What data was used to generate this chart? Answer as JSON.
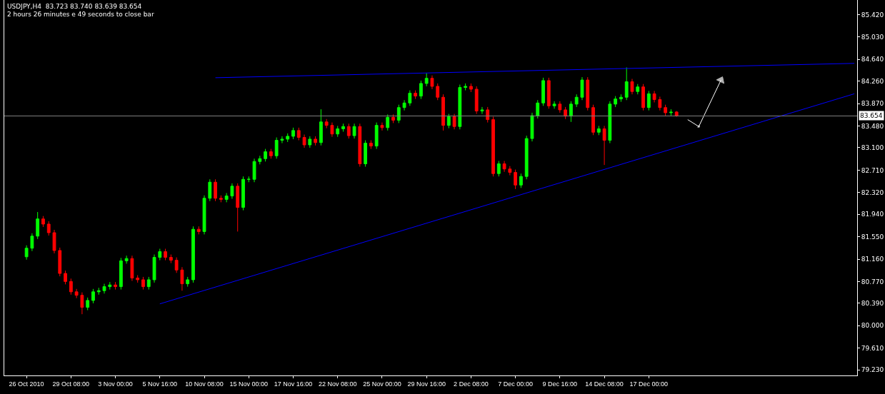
{
  "chart_data": {
    "type": "candlestick",
    "annotations": [
      "USDJPY,H4  83.723 83.740 83.639 83.654",
      "2 hours 26 minutes e 49 seconds to close bar"
    ],
    "categories": [
      "26 Oct 2010",
      null,
      null,
      null,
      null,
      null,
      null,
      null,
      "29 Oct 08:00",
      null,
      null,
      null,
      null,
      null,
      null,
      null,
      "3 Nov 00:00",
      null,
      null,
      null,
      null,
      null,
      null,
      null,
      "5 Nov 16:00",
      null,
      null,
      null,
      null,
      null,
      null,
      null,
      "10 Nov 08:00",
      null,
      null,
      null,
      null,
      null,
      null,
      null,
      "15 Nov 00:00",
      null,
      null,
      null,
      null,
      null,
      null,
      null,
      "17 Nov 16:00",
      null,
      null,
      null,
      null,
      null,
      null,
      null,
      "22 Nov 08:00",
      null,
      null,
      null,
      null,
      null,
      null,
      null,
      "25 Nov 00:00",
      null,
      null,
      null,
      null,
      null,
      null,
      null,
      "29 Nov 16:00",
      null,
      null,
      null,
      null,
      null,
      null,
      null,
      "2 Dec 08:00",
      null,
      null,
      null,
      null,
      null,
      null,
      null,
      "7 Dec 00:00",
      null,
      null,
      null,
      null,
      null,
      null,
      null,
      "9 Dec 16:00",
      null,
      null,
      null,
      null,
      null,
      null,
      null,
      "14 Dec 08:00",
      null,
      null,
      null,
      null,
      null,
      null,
      null,
      "17 Dec 00:00",
      null,
      null,
      null,
      null,
      null,
      null,
      null,
      null,
      null,
      null,
      null,
      null,
      null,
      null,
      null,
      null,
      null,
      null,
      null,
      null,
      null,
      null,
      null,
      null,
      null,
      null,
      null,
      null,
      null,
      null,
      null,
      null,
      null,
      null,
      null,
      null,
      null
    ],
    "ohlc": [
      [
        81.2,
        81.4,
        81.15,
        81.35
      ],
      [
        81.35,
        81.61,
        81.3,
        81.56
      ],
      [
        81.56,
        81.98,
        81.51,
        81.86
      ],
      [
        81.86,
        81.91,
        81.72,
        81.77
      ],
      [
        81.77,
        81.82,
        81.57,
        81.62
      ],
      [
        81.62,
        81.67,
        81.26,
        81.31
      ],
      [
        81.31,
        81.36,
        80.86,
        80.91
      ],
      [
        80.91,
        80.96,
        80.72,
        80.77
      ],
      [
        80.77,
        80.82,
        80.54,
        80.59
      ],
      [
        80.59,
        80.64,
        80.48,
        80.53
      ],
      [
        80.53,
        80.58,
        80.2,
        80.32
      ],
      [
        80.32,
        80.49,
        80.27,
        80.44
      ],
      [
        80.44,
        80.64,
        80.39,
        80.59
      ],
      [
        80.59,
        80.66,
        80.54,
        80.61
      ],
      [
        80.61,
        80.73,
        80.56,
        80.68
      ],
      [
        80.68,
        80.76,
        80.63,
        80.71
      ],
      [
        80.71,
        80.76,
        80.63,
        80.68
      ],
      [
        80.68,
        81.18,
        80.63,
        81.13
      ],
      [
        81.13,
        81.22,
        81.08,
        81.17
      ],
      [
        81.17,
        81.22,
        80.78,
        80.83
      ],
      [
        80.83,
        80.88,
        80.75,
        80.8
      ],
      [
        80.8,
        80.85,
        80.63,
        80.68
      ],
      [
        80.68,
        80.85,
        80.63,
        80.8
      ],
      [
        80.8,
        81.24,
        80.75,
        81.19
      ],
      [
        81.19,
        81.34,
        81.14,
        81.29
      ],
      [
        81.29,
        81.34,
        81.14,
        81.19
      ],
      [
        81.19,
        81.24,
        81.09,
        81.14
      ],
      [
        81.14,
        81.19,
        80.92,
        80.97
      ],
      [
        80.97,
        81.02,
        80.61,
        80.73
      ],
      [
        80.73,
        80.85,
        80.68,
        80.8
      ],
      [
        80.8,
        81.73,
        80.75,
        81.68
      ],
      [
        81.68,
        81.73,
        81.59,
        81.64
      ],
      [
        81.64,
        82.27,
        81.59,
        82.22
      ],
      [
        82.22,
        82.55,
        82.17,
        82.5
      ],
      [
        82.5,
        82.55,
        82.17,
        82.22
      ],
      [
        82.22,
        82.27,
        82.15,
        82.2
      ],
      [
        82.2,
        82.31,
        82.15,
        82.26
      ],
      [
        82.26,
        82.48,
        82.21,
        82.43
      ],
      [
        82.43,
        82.48,
        81.64,
        82.06
      ],
      [
        82.06,
        82.6,
        82.01,
        82.55
      ],
      [
        82.55,
        82.6,
        82.5,
        82.55
      ],
      [
        82.55,
        82.91,
        82.5,
        82.86
      ],
      [
        82.86,
        82.96,
        82.81,
        82.91
      ],
      [
        82.91,
        83.08,
        82.86,
        83.03
      ],
      [
        83.03,
        83.08,
        82.91,
        82.96
      ],
      [
        82.96,
        83.28,
        82.91,
        83.23
      ],
      [
        83.23,
        83.3,
        83.18,
        83.25
      ],
      [
        83.25,
        83.35,
        83.2,
        83.3
      ],
      [
        83.3,
        83.45,
        83.25,
        83.4
      ],
      [
        83.4,
        83.45,
        83.23,
        83.28
      ],
      [
        83.28,
        83.33,
        83.1,
        83.15
      ],
      [
        83.15,
        83.3,
        83.1,
        83.25
      ],
      [
        83.25,
        83.3,
        83.14,
        83.19
      ],
      [
        83.19,
        83.77,
        83.14,
        83.55
      ],
      [
        83.55,
        83.6,
        83.44,
        83.49
      ],
      [
        83.49,
        83.54,
        83.29,
        83.34
      ],
      [
        83.34,
        83.48,
        83.29,
        83.43
      ],
      [
        83.43,
        83.52,
        83.38,
        83.47
      ],
      [
        83.47,
        83.52,
        83.26,
        83.31
      ],
      [
        83.31,
        83.52,
        83.26,
        83.47
      ],
      [
        83.47,
        83.52,
        82.77,
        82.82
      ],
      [
        82.82,
        83.23,
        82.77,
        83.18
      ],
      [
        83.18,
        83.23,
        83.08,
        83.13
      ],
      [
        83.13,
        83.54,
        83.08,
        83.49
      ],
      [
        83.49,
        83.54,
        83.4,
        83.45
      ],
      [
        83.45,
        83.68,
        83.4,
        83.63
      ],
      [
        83.63,
        83.68,
        83.53,
        83.58
      ],
      [
        83.58,
        83.85,
        83.53,
        83.8
      ],
      [
        83.8,
        83.93,
        83.75,
        83.88
      ],
      [
        83.88,
        84.1,
        83.83,
        84.05
      ],
      [
        84.05,
        84.1,
        83.95,
        84.0
      ],
      [
        84.0,
        84.27,
        83.95,
        84.22
      ],
      [
        84.22,
        84.4,
        84.17,
        84.31
      ],
      [
        84.31,
        84.36,
        84.12,
        84.17
      ],
      [
        84.17,
        84.22,
        83.93,
        83.98
      ],
      [
        83.98,
        84.03,
        83.4,
        83.49
      ],
      [
        83.49,
        83.69,
        83.44,
        83.64
      ],
      [
        83.64,
        83.69,
        83.42,
        83.47
      ],
      [
        83.47,
        84.2,
        83.42,
        84.15
      ],
      [
        84.15,
        84.22,
        84.1,
        84.17
      ],
      [
        84.17,
        84.22,
        84.07,
        84.12
      ],
      [
        84.12,
        84.17,
        83.69,
        83.74
      ],
      [
        83.74,
        83.81,
        83.69,
        83.76
      ],
      [
        83.76,
        83.81,
        83.54,
        83.59
      ],
      [
        83.59,
        83.64,
        82.6,
        82.65
      ],
      [
        82.65,
        82.87,
        82.6,
        82.82
      ],
      [
        82.82,
        82.87,
        82.68,
        82.73
      ],
      [
        82.73,
        82.78,
        82.62,
        82.67
      ],
      [
        82.67,
        82.72,
        82.38,
        82.45
      ],
      [
        82.45,
        82.65,
        82.4,
        82.6
      ],
      [
        82.6,
        83.31,
        82.55,
        83.26
      ],
      [
        83.26,
        83.71,
        83.21,
        83.66
      ],
      [
        83.66,
        83.93,
        83.61,
        83.88
      ],
      [
        83.88,
        84.32,
        83.83,
        84.27
      ],
      [
        84.27,
        84.32,
        83.78,
        83.83
      ],
      [
        83.83,
        83.91,
        83.78,
        83.86
      ],
      [
        83.86,
        83.91,
        83.71,
        83.76
      ],
      [
        83.76,
        83.81,
        83.6,
        83.65
      ],
      [
        83.65,
        83.91,
        83.55,
        83.86
      ],
      [
        83.86,
        84.03,
        83.81,
        83.98
      ],
      [
        83.98,
        84.33,
        83.93,
        84.28
      ],
      [
        84.28,
        84.33,
        83.75,
        83.8
      ],
      [
        83.8,
        83.85,
        83.32,
        83.37
      ],
      [
        83.37,
        83.48,
        83.32,
        83.43
      ],
      [
        83.43,
        83.48,
        82.8,
        83.23
      ],
      [
        83.23,
        83.91,
        83.18,
        83.86
      ],
      [
        83.86,
        84.0,
        83.81,
        83.95
      ],
      [
        83.95,
        84.03,
        83.9,
        83.98
      ],
      [
        83.98,
        84.5,
        83.93,
        84.25
      ],
      [
        84.25,
        84.3,
        84.03,
        84.08
      ],
      [
        84.08,
        84.21,
        84.03,
        84.16
      ],
      [
        84.16,
        84.21,
        83.75,
        83.8
      ],
      [
        83.8,
        84.09,
        83.75,
        84.04
      ],
      [
        84.04,
        84.09,
        83.89,
        83.94
      ],
      [
        83.94,
        83.99,
        83.75,
        83.8
      ],
      [
        83.8,
        83.85,
        83.66,
        83.71
      ],
      [
        83.71,
        83.77,
        83.66,
        83.72
      ],
      [
        83.723,
        83.74,
        83.639,
        83.654
      ],
      null,
      null,
      null,
      null,
      null,
      null,
      null,
      null,
      null,
      null,
      null,
      null,
      null,
      null,
      null,
      null,
      null,
      null,
      null,
      null,
      null,
      null,
      null,
      null,
      null,
      null,
      null,
      null,
      null,
      null,
      null,
      null
    ],
    "series": [
      {
        "type": "line",
        "color": "#0000ff",
        "values": [
          null,
          null,
          null,
          null,
          null,
          null,
          null,
          null,
          null,
          null,
          null,
          null,
          null,
          null,
          null,
          null,
          null,
          null,
          null,
          null,
          null,
          null,
          null,
          null,
          null,
          null,
          null,
          null,
          null,
          null,
          null,
          null,
          null,
          null,
          84.32,
          null,
          null,
          null,
          null,
          null,
          null,
          null,
          null,
          null,
          null,
          null,
          null,
          null,
          null,
          null,
          null,
          null,
          null,
          null,
          null,
          null,
          null,
          null,
          null,
          null,
          null,
          null,
          null,
          null,
          null,
          null,
          null,
          null,
          null,
          null,
          null,
          null,
          null,
          null,
          null,
          null,
          null,
          null,
          null,
          null,
          null,
          null,
          null,
          null,
          null,
          null,
          null,
          null,
          null,
          null,
          null,
          null,
          null,
          null,
          null,
          null,
          null,
          null,
          null,
          null,
          null,
          null,
          null,
          null,
          null,
          null,
          null,
          null,
          null,
          null,
          null,
          null,
          null,
          null,
          null,
          null,
          null,
          null,
          null,
          null,
          null,
          null,
          null,
          null,
          null,
          null,
          null,
          null,
          null,
          null,
          null,
          null,
          null,
          null,
          null,
          null,
          null,
          null,
          null,
          null,
          null,
          null,
          null,
          null,
          null,
          null,
          null,
          null,
          null,
          84.57
        ]
      },
      {
        "type": "line",
        "color": "#0000ff",
        "values": [
          null,
          null,
          null,
          null,
          null,
          null,
          null,
          null,
          null,
          null,
          null,
          null,
          null,
          null,
          null,
          null,
          null,
          null,
          null,
          null,
          null,
          null,
          null,
          null,
          80.38,
          null,
          null,
          null,
          null,
          null,
          null,
          null,
          null,
          null,
          null,
          null,
          null,
          null,
          null,
          null,
          null,
          null,
          null,
          null,
          null,
          null,
          null,
          null,
          null,
          null,
          null,
          null,
          null,
          null,
          null,
          null,
          null,
          null,
          null,
          null,
          null,
          null,
          null,
          null,
          null,
          null,
          null,
          null,
          null,
          null,
          null,
          null,
          null,
          null,
          null,
          null,
          null,
          null,
          null,
          null,
          null,
          null,
          null,
          null,
          null,
          null,
          null,
          null,
          null,
          null,
          null,
          null,
          null,
          null,
          null,
          null,
          null,
          null,
          null,
          null,
          null,
          null,
          null,
          null,
          null,
          null,
          null,
          null,
          null,
          null,
          null,
          null,
          null,
          null,
          null,
          null,
          null,
          null,
          null,
          null,
          null,
          null,
          null,
          null,
          null,
          null,
          null,
          null,
          null,
          null,
          null,
          null,
          null,
          null,
          null,
          null,
          null,
          null,
          null,
          null,
          null,
          null,
          null,
          null,
          null,
          null,
          null,
          null,
          null,
          84.04
        ]
      },
      {
        "type": "line",
        "color": "#ffffff",
        "marker": "triangle",
        "values": [
          null,
          null,
          null,
          null,
          null,
          null,
          null,
          null,
          null,
          null,
          null,
          null,
          null,
          null,
          null,
          null,
          null,
          null,
          null,
          null,
          null,
          null,
          null,
          null,
          null,
          null,
          null,
          null,
          null,
          null,
          null,
          null,
          null,
          null,
          null,
          null,
          null,
          null,
          null,
          null,
          null,
          null,
          null,
          null,
          null,
          null,
          null,
          null,
          null,
          null,
          null,
          null,
          null,
          null,
          null,
          null,
          null,
          null,
          null,
          null,
          null,
          null,
          null,
          null,
          null,
          null,
          null,
          null,
          null,
          null,
          null,
          null,
          null,
          null,
          null,
          null,
          null,
          null,
          null,
          null,
          null,
          null,
          null,
          null,
          null,
          null,
          null,
          null,
          null,
          null,
          null,
          null,
          null,
          null,
          null,
          null,
          null,
          null,
          null,
          null,
          null,
          null,
          null,
          null,
          null,
          null,
          null,
          null,
          null,
          null,
          null,
          null,
          null,
          null,
          null,
          null,
          null,
          null,
          null,
          83.59,
          null,
          83.47,
          null,
          null,
          null,
          84.28,
          null,
          null,
          null,
          null,
          null,
          null,
          null,
          null,
          null,
          null,
          null,
          null,
          null,
          null,
          null,
          null,
          null,
          null,
          null,
          null,
          null,
          null,
          null,
          null
        ]
      }
    ],
    "ref_lines": [
      {
        "axis": "y",
        "value": 83.654,
        "label": "83.654",
        "color": "#808080"
      }
    ],
    "ylim": [
      79.133,
      85.674
    ],
    "yticks": [
      {
        "value": 79.23,
        "label": "79.230"
      },
      {
        "value": 79.61,
        "label": "79.610"
      },
      {
        "value": 80.0,
        "label": "80.000"
      },
      {
        "value": 80.39,
        "label": "80.390"
      },
      {
        "value": 80.77,
        "label": "80.770"
      },
      {
        "value": 81.16,
        "label": "81.160"
      },
      {
        "value": 81.55,
        "label": "81.550"
      },
      {
        "value": 81.94,
        "label": "81.940"
      },
      {
        "value": 82.32,
        "label": "82.320"
      },
      {
        "value": 82.71,
        "label": "82.710"
      },
      {
        "value": 83.1,
        "label": "83.100"
      },
      {
        "value": 83.48,
        "label": "83.480"
      },
      {
        "value": 83.87,
        "label": "83.870"
      },
      {
        "value": 84.26,
        "label": "84.260"
      },
      {
        "value": 84.64,
        "label": "84.640"
      },
      {
        "value": 85.03,
        "label": "85.030"
      },
      {
        "value": 85.42,
        "label": "85.420"
      }
    ],
    "grid": false
  }
}
